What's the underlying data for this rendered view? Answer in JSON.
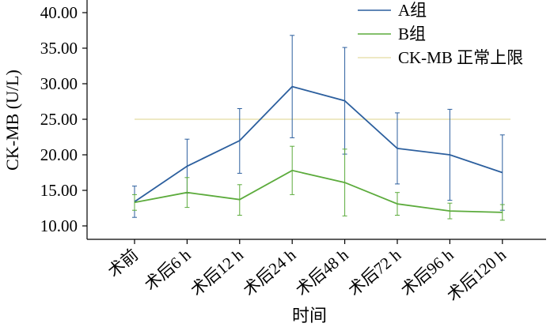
{
  "chart_data": {
    "type": "line",
    "title": "",
    "xlabel": "时间",
    "ylabel": "CK-MB (U/L)",
    "ylim": [
      10,
      40
    ],
    "yticks": [
      "10.00",
      "15.00",
      "20.00",
      "25.00",
      "30.00",
      "35.00",
      "40.00"
    ],
    "categories": [
      "术前",
      "术后6 h",
      "术后12 h",
      "术后24 h",
      "术后48 h",
      "术后72 h",
      "术后96 h",
      "术后120 h"
    ],
    "series": [
      {
        "name": "A组",
        "color": "#2c5f9e",
        "values": [
          13.4,
          18.4,
          22.0,
          29.6,
          27.6,
          20.9,
          20.0,
          17.5
        ],
        "err_low": [
          11.2,
          14.6,
          17.4,
          22.4,
          20.1,
          15.9,
          13.6,
          12.2
        ],
        "err_high": [
          15.6,
          22.2,
          26.5,
          36.8,
          35.1,
          25.9,
          26.4,
          22.8
        ]
      },
      {
        "name": "B组",
        "color": "#5cab3c",
        "values": [
          13.3,
          14.7,
          13.7,
          17.8,
          16.1,
          13.1,
          12.1,
          11.9
        ],
        "err_low": [
          12.2,
          12.6,
          11.5,
          14.4,
          11.4,
          11.5,
          11.0,
          10.8
        ],
        "err_high": [
          14.4,
          16.8,
          15.8,
          21.2,
          20.8,
          14.7,
          13.2,
          13.0
        ]
      }
    ],
    "reference_line": {
      "name": "CK-MB 正常上限",
      "value": 25,
      "color": "#e8e2b0"
    },
    "legend_position": "top-right",
    "grid": false
  }
}
